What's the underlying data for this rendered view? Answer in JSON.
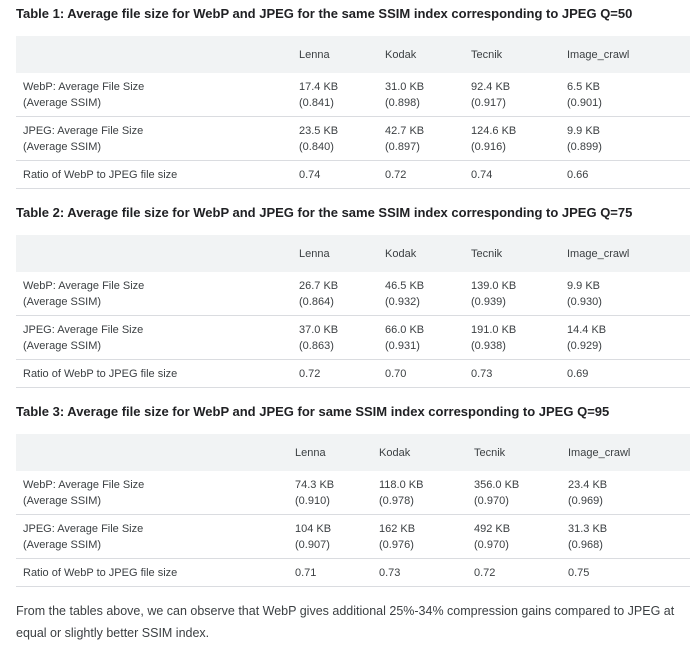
{
  "tables": [
    {
      "title": "Table 1: Average file size for WebP and JPEG for the same SSIM index corresponding to JPEG Q=50",
      "columns": [
        "",
        "Lenna",
        "Kodak",
        "Tecnik",
        "Image_crawl"
      ],
      "rows": [
        {
          "label": [
            "WebP: Average File Size",
            "(Average SSIM)"
          ],
          "cells": [
            [
              "17.4 KB",
              "(0.841)"
            ],
            [
              "31.0 KB",
              "(0.898)"
            ],
            [
              "92.4 KB",
              "(0.917)"
            ],
            [
              "6.5 KB",
              "(0.901)"
            ]
          ]
        },
        {
          "label": [
            "JPEG: Average File Size",
            "(Average SSIM)"
          ],
          "cells": [
            [
              "23.5 KB",
              "(0.840)"
            ],
            [
              "42.7 KB",
              "(0.897)"
            ],
            [
              "124.6 KB",
              "(0.916)"
            ],
            [
              "9.9 KB",
              "(0.899)"
            ]
          ]
        },
        {
          "label": [
            "Ratio of WebP to JPEG file size"
          ],
          "cells": [
            [
              "0.74"
            ],
            [
              "0.72"
            ],
            [
              "0.74"
            ],
            [
              "0.66"
            ]
          ]
        }
      ]
    },
    {
      "title": "Table 2: Average file size for WebP and JPEG for the same SSIM index corresponding to JPEG Q=75",
      "columns": [
        "",
        "Lenna",
        "Kodak",
        "Tecnik",
        "Image_crawl"
      ],
      "rows": [
        {
          "label": [
            "WebP: Average File Size",
            "(Average SSIM)"
          ],
          "cells": [
            [
              "26.7 KB",
              "(0.864)"
            ],
            [
              "46.5 KB",
              "(0.932)"
            ],
            [
              "139.0 KB",
              "(0.939)"
            ],
            [
              "9.9 KB",
              "(0.930)"
            ]
          ]
        },
        {
          "label": [
            "JPEG: Average File Size",
            "(Average SSIM)"
          ],
          "cells": [
            [
              "37.0 KB",
              "(0.863)"
            ],
            [
              "66.0 KB",
              "(0.931)"
            ],
            [
              "191.0 KB",
              "(0.938)"
            ],
            [
              "14.4 KB",
              "(0.929)"
            ]
          ]
        },
        {
          "label": [
            "Ratio of WebP to JPEG file size"
          ],
          "cells": [
            [
              "0.72"
            ],
            [
              "0.70"
            ],
            [
              "0.73"
            ],
            [
              "0.69"
            ]
          ]
        }
      ]
    },
    {
      "title": "Table 3: Average file size for WebP and JPEG for same SSIM index corresponding to JPEG Q=95",
      "columns": [
        "",
        "Lenna",
        "Kodak",
        "Tecnik",
        "Image_crawl"
      ],
      "rows": [
        {
          "label": [
            "WebP: Average File Size",
            "(Average SSIM)"
          ],
          "cells": [
            [
              "74.3 KB",
              "(0.910)"
            ],
            [
              "118.0 KB",
              "(0.978)"
            ],
            [
              "356.0 KB",
              "(0.970)"
            ],
            [
              "23.4 KB",
              "(0.969)"
            ]
          ]
        },
        {
          "label": [
            "JPEG: Average File Size",
            "(Average SSIM)"
          ],
          "cells": [
            [
              "104 KB",
              "(0.907)"
            ],
            [
              "162 KB",
              "(0.976)"
            ],
            [
              "492 KB",
              "(0.970)"
            ],
            [
              "31.3 KB",
              "(0.968)"
            ]
          ]
        },
        {
          "label": [
            "Ratio of WebP to JPEG file size"
          ],
          "cells": [
            [
              "0.71"
            ],
            [
              "0.73"
            ],
            [
              "0.72"
            ],
            [
              "0.75"
            ]
          ]
        }
      ]
    }
  ],
  "conclusion": "From the tables above, we can observe that WebP gives additional 25%-34% compression gains compared to JPEG at equal or slightly better SSIM index."
}
